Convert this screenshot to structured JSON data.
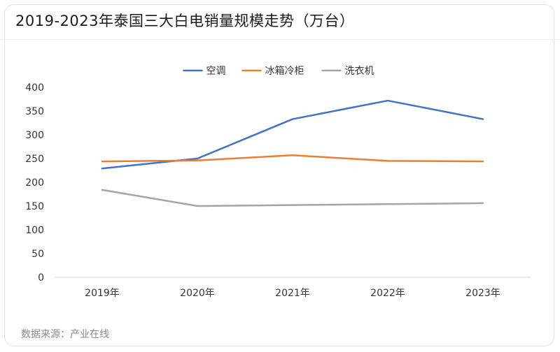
{
  "title": "2019-2023年泰国三大白电销量规模走势（万台）",
  "source": "数据来源：产业在线",
  "chart_data": {
    "type": "line",
    "categories": [
      "2019年",
      "2020年",
      "2021年",
      "2022年",
      "2023年"
    ],
    "yticks": [
      "0",
      "50",
      "100",
      "150",
      "200",
      "250",
      "300",
      "350",
      "400"
    ],
    "ylim": [
      0,
      400
    ],
    "grid": false,
    "legend_position": "top",
    "series": [
      {
        "name": "空调",
        "color": "#4472C4",
        "values": [
          229,
          250,
          333,
          372,
          333
        ]
      },
      {
        "name": "冰箱冷柜",
        "color": "#ED7D31",
        "values": [
          244,
          246,
          257,
          245,
          244
        ]
      },
      {
        "name": "洗衣机",
        "color": "#A5A5A5",
        "values": [
          184,
          150,
          152,
          154,
          156
        ]
      }
    ]
  }
}
